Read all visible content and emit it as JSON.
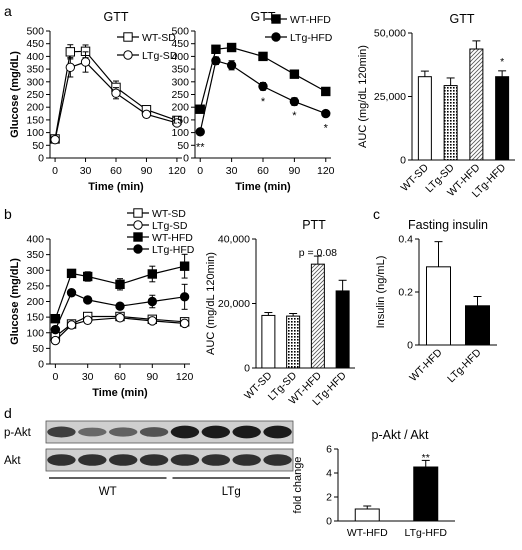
{
  "panel_letters": [
    "a",
    "b",
    "c",
    "d"
  ],
  "chart_data": [
    {
      "id": "a1",
      "type": "line",
      "title": "GTT",
      "xlabel": "Time (min)",
      "ylabel": "Glucose (mg/dL)",
      "xlim": [
        -5,
        125
      ],
      "ylim": [
        0,
        500
      ],
      "xticks": [
        0,
        30,
        60,
        90,
        120
      ],
      "yticks": [
        0,
        50,
        100,
        150,
        200,
        250,
        300,
        350,
        400,
        450,
        500
      ],
      "legend": "top-right",
      "series": [
        {
          "name": "WT-SD",
          "marker": "square-open",
          "x": [
            0,
            15,
            30,
            60,
            90,
            120
          ],
          "y": [
            75,
            418,
            420,
            278,
            190,
            148
          ],
          "err": [
            8,
            28,
            25,
            25,
            12,
            12
          ]
        },
        {
          "name": "LTg-SD",
          "marker": "circle-open",
          "x": [
            0,
            15,
            30,
            60,
            90,
            120
          ],
          "y": [
            72,
            357,
            378,
            255,
            172,
            138
          ],
          "err": [
            8,
            38,
            40,
            22,
            12,
            10
          ]
        }
      ],
      "annotations": []
    },
    {
      "id": "a2",
      "type": "line",
      "title": "GTT",
      "xlabel": "Time (min)",
      "ylabel": "",
      "xlim": [
        -5,
        125
      ],
      "ylim": [
        0,
        500
      ],
      "xticks": [
        0,
        30,
        60,
        90,
        120
      ],
      "yticks": [
        0,
        50,
        100,
        150,
        200,
        250,
        300,
        350,
        400,
        450,
        500
      ],
      "legend": "top-right",
      "series": [
        {
          "name": "WT-HFD",
          "marker": "square-filled",
          "x": [
            0,
            15,
            30,
            60,
            90,
            120
          ],
          "y": [
            192,
            428,
            435,
            400,
            330,
            262
          ],
          "err": [
            8,
            15,
            15,
            15,
            15,
            15
          ]
        },
        {
          "name": "LTg-HFD",
          "marker": "circle-filled",
          "x": [
            0,
            15,
            30,
            60,
            90,
            120
          ],
          "y": [
            103,
            383,
            365,
            282,
            222,
            175
          ],
          "err": [
            5,
            15,
            18,
            15,
            15,
            12
          ]
        }
      ],
      "annotations": [
        {
          "text": "**",
          "x": 0,
          "y": 45
        },
        {
          "text": "*",
          "x": 60,
          "y": 225
        },
        {
          "text": "*",
          "x": 90,
          "y": 170
        },
        {
          "text": "*",
          "x": 120,
          "y": 120
        }
      ]
    },
    {
      "id": "a3",
      "type": "bar",
      "title": "GTT",
      "xlabel": "",
      "ylabel": "AUC (mg/dL 120min)",
      "ylim": [
        0,
        50000
      ],
      "yticks": [
        0,
        25000,
        50000
      ],
      "ytick_labels": [
        "0",
        "25,000",
        "50,000"
      ],
      "categories": [
        "WT-SD",
        "LTg-SD",
        "WT-HFD",
        "LTg-HFD"
      ],
      "values": [
        32800,
        29300,
        43700,
        32800
      ],
      "err": [
        2200,
        3000,
        3200,
        2300
      ],
      "fills": [
        "white",
        "dots",
        "hatch",
        "black"
      ],
      "annotations": [
        {
          "text": "*",
          "category": "LTg-HFD",
          "y": 39000
        }
      ]
    },
    {
      "id": "b1",
      "type": "line",
      "title": "",
      "xlabel": "Time (min)",
      "ylabel": "Glucose (mg/dL)",
      "xlim": [
        -5,
        125
      ],
      "ylim": [
        0,
        400
      ],
      "xticks": [
        0,
        30,
        60,
        90,
        120
      ],
      "yticks": [
        0,
        50,
        100,
        150,
        200,
        250,
        300,
        350,
        400
      ],
      "legend": "top-right",
      "series": [
        {
          "name": "WT-SD",
          "marker": "square-open",
          "x": [
            0,
            15,
            30,
            60,
            90,
            120
          ],
          "y": [
            88,
            128,
            152,
            152,
            143,
            135
          ],
          "err": [
            5,
            8,
            12,
            10,
            10,
            10
          ]
        },
        {
          "name": "LTg-SD",
          "marker": "circle-open",
          "x": [
            0,
            15,
            30,
            60,
            90,
            120
          ],
          "y": [
            75,
            125,
            140,
            148,
            138,
            130
          ],
          "err": [
            5,
            8,
            10,
            10,
            8,
            8
          ]
        },
        {
          "name": "WT-HFD",
          "marker": "square-filled",
          "x": [
            0,
            15,
            30,
            60,
            90,
            120
          ],
          "y": [
            145,
            290,
            280,
            255,
            288,
            313
          ],
          "err": [
            8,
            12,
            15,
            18,
            25,
            38
          ]
        },
        {
          "name": "LTg-HFD",
          "marker": "circle-filled",
          "x": [
            0,
            15,
            30,
            60,
            90,
            120
          ],
          "y": [
            110,
            228,
            205,
            185,
            200,
            215
          ],
          "err": [
            5,
            10,
            10,
            10,
            20,
            40
          ]
        }
      ]
    },
    {
      "id": "b2",
      "type": "bar",
      "title": "PTT",
      "xlabel": "",
      "ylabel": "AUC (mg/dL 120min)",
      "ylim": [
        0,
        40000
      ],
      "yticks": [
        0,
        20000,
        40000
      ],
      "ytick_labels": [
        "0",
        "20,000",
        "40,000"
      ],
      "categories": [
        "WT-SD",
        "LTg-SD",
        "WT-HFD",
        "LTg-HFD"
      ],
      "values": [
        16300,
        16100,
        32200,
        23900
      ],
      "err": [
        900,
        800,
        2500,
        3300
      ],
      "fills": [
        "white",
        "dots",
        "hatch",
        "black"
      ],
      "annotations": [
        {
          "text": "p = 0.08",
          "category": "WT-HFD",
          "y": 36000
        }
      ]
    },
    {
      "id": "c",
      "type": "bar",
      "title": "Fasting insulin",
      "xlabel": "",
      "ylabel": "Insulin (ng/mL)",
      "ylim": [
        0,
        0.4
      ],
      "yticks": [
        0,
        0.2,
        0.4
      ],
      "ytick_labels": [
        "0",
        "0.2",
        "0.4"
      ],
      "categories": [
        "WT-HFD",
        "LTg-HFD"
      ],
      "values": [
        0.295,
        0.148
      ],
      "err": [
        0.095,
        0.035
      ],
      "fills": [
        "white",
        "black"
      ]
    },
    {
      "id": "d",
      "type": "bar",
      "title": "p-Akt / Akt",
      "xlabel": "",
      "ylabel": "fold change",
      "ylim": [
        0,
        6
      ],
      "yticks": [
        0,
        2,
        4,
        6
      ],
      "ytick_labels": [
        "0",
        "2",
        "4",
        "6"
      ],
      "categories": [
        "WT-HFD",
        "LTg-HFD"
      ],
      "values": [
        1.0,
        4.5
      ],
      "err": [
        0.25,
        0.55
      ],
      "fills": [
        "white",
        "black"
      ],
      "annotations": [
        {
          "text": "**",
          "category": "LTg-HFD",
          "y": 5.35
        }
      ]
    }
  ],
  "blot": {
    "rows": [
      {
        "label": "p-Akt",
        "intensities": [
          0.7,
          0.4,
          0.45,
          0.55,
          0.95,
          0.95,
          0.95,
          0.95
        ]
      },
      {
        "label": "Akt",
        "intensities": [
          0.8,
          0.8,
          0.8,
          0.8,
          0.8,
          0.8,
          0.8,
          0.8
        ]
      }
    ],
    "groups": [
      {
        "label": "WT",
        "lanes": [
          1,
          4
        ]
      },
      {
        "label": "LTg",
        "lanes": [
          5,
          8
        ]
      }
    ]
  }
}
